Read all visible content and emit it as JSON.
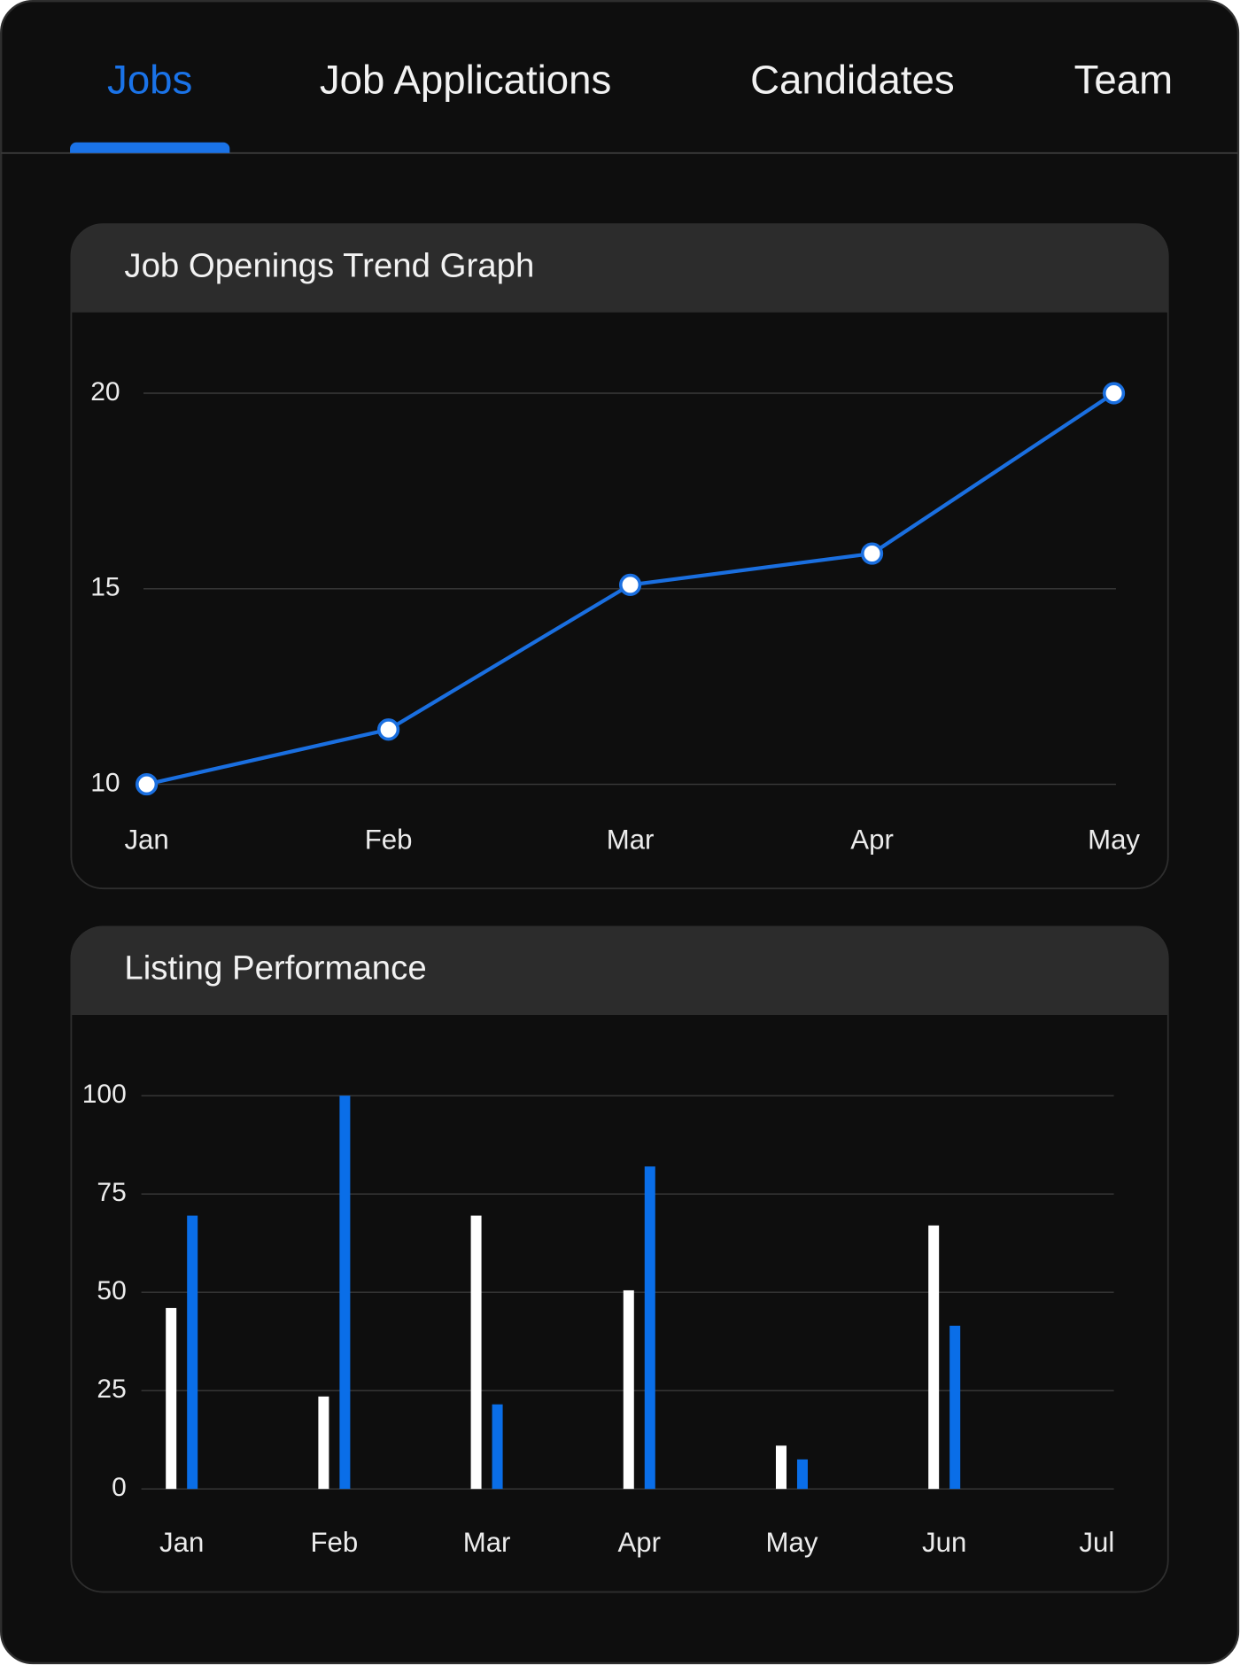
{
  "tabs": [
    {
      "label": "Jobs",
      "selected": true
    },
    {
      "label": "Job Applications",
      "selected": false
    },
    {
      "label": "Candidates",
      "selected": false
    },
    {
      "label": "Team",
      "selected": false
    }
  ],
  "chart_data": [
    {
      "type": "line",
      "title": "Job Openings Trend Graph",
      "categories": [
        "Jan",
        "Feb",
        "Mar",
        "Apr",
        "May"
      ],
      "series": [
        {
          "color": "#1a6fe0",
          "values": [
            10,
            11.4,
            15.1,
            15.9,
            20
          ]
        }
      ],
      "ylim": [
        10,
        20
      ],
      "yticks": [
        10,
        15,
        20
      ],
      "grid": true
    },
    {
      "type": "bar",
      "title": "Listing Performance",
      "categories": [
        "Jan",
        "Feb",
        "Mar",
        "Apr",
        "May",
        "Jun",
        "Jul"
      ],
      "series": [
        {
          "color": "#ffffff",
          "values": [
            46,
            23.5,
            69.5,
            50.5,
            11,
            67,
            null
          ]
        },
        {
          "color": "#0a6ee8",
          "values": [
            69.5,
            100,
            21.5,
            82,
            7.5,
            41.5,
            null
          ]
        }
      ],
      "ylim": [
        0,
        100
      ],
      "yticks": [
        0,
        25,
        50,
        75,
        100
      ],
      "grid": true
    }
  ]
}
